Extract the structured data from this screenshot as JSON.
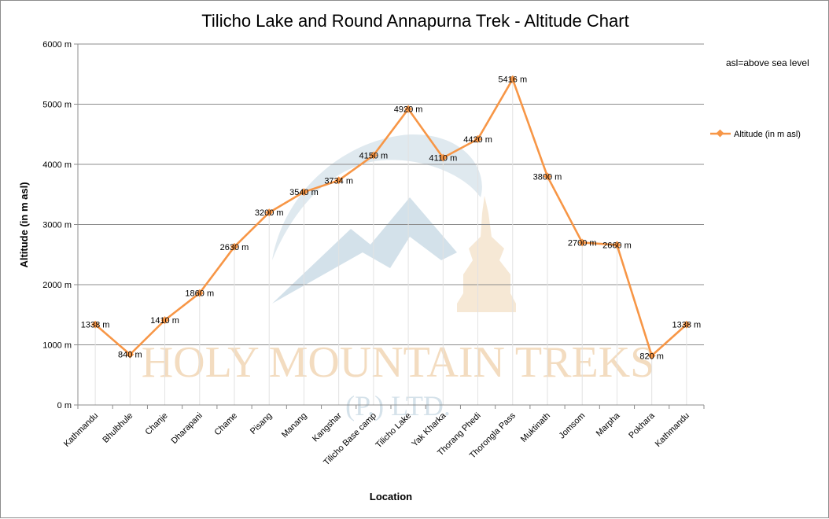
{
  "chart_data": {
    "type": "line",
    "title": "Tilicho Lake and Round Annapurna Trek - Altitude Chart",
    "xlabel": "Location",
    "ylabel": "Altitude (in m asl)",
    "ylim": [
      0,
      6000
    ],
    "y_ticks": [
      "0 m",
      "1000 m",
      "2000 m",
      "3000 m",
      "4000 m",
      "5000 m",
      "6000 m"
    ],
    "grid": true,
    "legend_position": "right",
    "note": "asl=above sea level",
    "categories": [
      "Kathmandu",
      "Bhulbhule",
      "Chanje",
      "Dharapani",
      "Chame",
      "Pisang",
      "Manang",
      "Kangshar",
      "Tilicho Base camp",
      "Tilicho Lake",
      "Yak Kharka",
      "Thorang Phedi",
      "Thorongla Pass",
      "Muktinath",
      "Jomsom",
      "Marpha",
      "Pokhara",
      "Kathmandu"
    ],
    "series": [
      {
        "name": "Altitude (in  m asl)",
        "color": "#f79646",
        "values": [
          1338,
          840,
          1410,
          1860,
          2630,
          3200,
          3540,
          3734,
          4150,
          4920,
          4110,
          4420,
          5416,
          3800,
          2700,
          2660,
          820,
          1338
        ],
        "labels": [
          "1338 m",
          "840 m",
          "1410 m",
          "1860 m",
          "2630 m",
          "3200 m",
          "3540 m",
          "3734 m",
          "4150 m",
          "4920 m",
          "4110 m",
          "4420 m",
          "5416 m",
          "3800 m",
          "2700 m",
          "2660 m",
          "820 m",
          "1338 m"
        ]
      }
    ]
  },
  "watermark": {
    "line1": "HOLY MOUNTAIN TREKS",
    "line2": "(P.) LTD."
  }
}
